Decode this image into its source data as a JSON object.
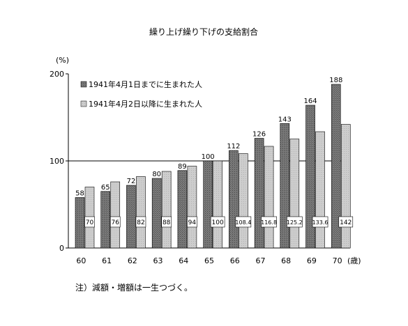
{
  "chart_data": {
    "type": "bar",
    "title": "繰り上げ繰り下げの支給割合",
    "ylabel": "(%)",
    "xunit": "(歳)",
    "ylim": [
      0,
      200
    ],
    "yticks": [
      0,
      100,
      200
    ],
    "categories": [
      "60",
      "61",
      "62",
      "63",
      "64",
      "65",
      "66",
      "67",
      "68",
      "69",
      "70"
    ],
    "legend_position": "top-left",
    "grid": "horizontal line at 100",
    "series": [
      {
        "name": "1941年4月1日までに生まれた人",
        "color": "#6e6e6e",
        "values": [
          58,
          65,
          72,
          80,
          89,
          100,
          112,
          126,
          143,
          164,
          188
        ],
        "labels": [
          "58",
          "65",
          "72",
          "80",
          "89",
          "100",
          "112",
          "126",
          "143",
          "164",
          "188"
        ],
        "label_position": "above"
      },
      {
        "name": "1941年4月2日以降に生まれた人",
        "color": "#c4c4c4",
        "values": [
          70,
          76,
          82,
          88,
          94,
          100,
          108.4,
          116.8,
          125.2,
          133.6,
          142
        ],
        "labels": [
          "70",
          "76",
          "82",
          "88",
          "94",
          "100",
          "108.4",
          "116.8",
          "125.2",
          "133.6",
          "142"
        ],
        "label_position": "boxed"
      }
    ],
    "note": "注）減額・増額は一生つづく。"
  }
}
